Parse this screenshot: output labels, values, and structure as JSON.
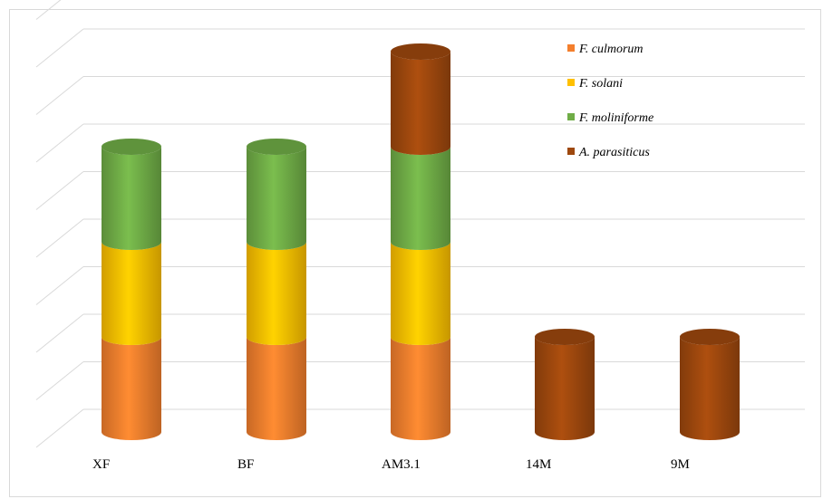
{
  "chart_data": {
    "type": "bar",
    "subtype": "stacked-cylinder-3d",
    "title": "",
    "xlabel": "",
    "ylabel": "",
    "categories": [
      "XF",
      "BF",
      "AM3.1",
      "14M",
      "9M"
    ],
    "series": [
      {
        "name": "F. culmorum",
        "color": "#f47f2d",
        "values": [
          1,
          1,
          1,
          0,
          0
        ]
      },
      {
        "name": "F. solani",
        "color": "#ffc000",
        "values": [
          1,
          1,
          1,
          0,
          0
        ]
      },
      {
        "name": "F. moliniforme",
        "color": "#70ad47",
        "values": [
          1,
          1,
          1,
          0,
          0
        ]
      },
      {
        "name": "A. parasiticus",
        "color": "#9e480e",
        "values": [
          0,
          0,
          1,
          1,
          1
        ]
      }
    ],
    "ylim": [
      0,
      4.5
    ],
    "grid": true,
    "legend_position": "top-right"
  }
}
